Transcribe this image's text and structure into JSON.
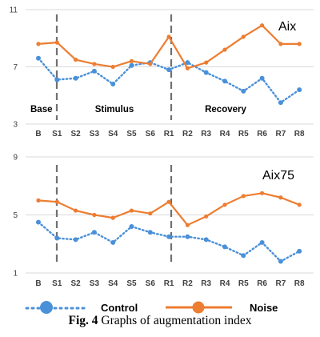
{
  "chart_data": [
    {
      "type": "line",
      "title": "Aix",
      "categories": [
        "B",
        "S1",
        "S2",
        "S3",
        "S4",
        "S5",
        "S6",
        "R1",
        "R2",
        "R3",
        "R4",
        "R5",
        "R6",
        "R7",
        "R8"
      ],
      "ylim": [
        3,
        11
      ],
      "yticks": [
        3,
        7,
        11
      ],
      "grid": "horizontal",
      "phase_labels": [
        "Base",
        "Stimulus",
        "Recovery"
      ],
      "series": [
        {
          "name": "Control",
          "color": "#4a90d9",
          "style": "dotted",
          "values": [
            7.6,
            6.1,
            6.2,
            6.7,
            5.8,
            7.1,
            7.3,
            6.8,
            7.3,
            6.6,
            6.0,
            5.3,
            6.2,
            4.5,
            5.4
          ]
        },
        {
          "name": "Noise",
          "color": "#ed7d31",
          "style": "solid",
          "values": [
            8.6,
            8.7,
            7.5,
            7.2,
            7.0,
            7.4,
            7.2,
            9.1,
            6.9,
            7.3,
            8.2,
            9.1,
            9.9,
            8.6,
            8.6
          ]
        }
      ]
    },
    {
      "type": "line",
      "title": "Aix75",
      "categories": [
        "B",
        "S1",
        "S2",
        "S3",
        "S4",
        "S5",
        "S6",
        "R1",
        "R2",
        "R3",
        "R4",
        "R5",
        "R6",
        "R7",
        "R8"
      ],
      "ylim": [
        1,
        9
      ],
      "yticks": [
        1,
        5,
        9
      ],
      "grid": "horizontal",
      "series": [
        {
          "name": "Control",
          "color": "#4a90d9",
          "style": "dotted",
          "values": [
            4.5,
            3.4,
            3.3,
            3.8,
            3.1,
            4.2,
            3.8,
            3.5,
            3.5,
            3.3,
            2.8,
            2.2,
            3.1,
            1.8,
            2.5
          ]
        },
        {
          "name": "Noise",
          "color": "#ed7d31",
          "style": "solid",
          "values": [
            6.0,
            5.9,
            5.3,
            5.0,
            4.8,
            5.3,
            5.1,
            5.9,
            4.3,
            4.9,
            5.7,
            6.3,
            6.5,
            6.2,
            5.7
          ]
        }
      ]
    }
  ],
  "legend": {
    "control_label": "Control",
    "noise_label": "Noise"
  },
  "caption": {
    "label": "Fig. 4",
    "text": "Graphs of augmentation index"
  }
}
